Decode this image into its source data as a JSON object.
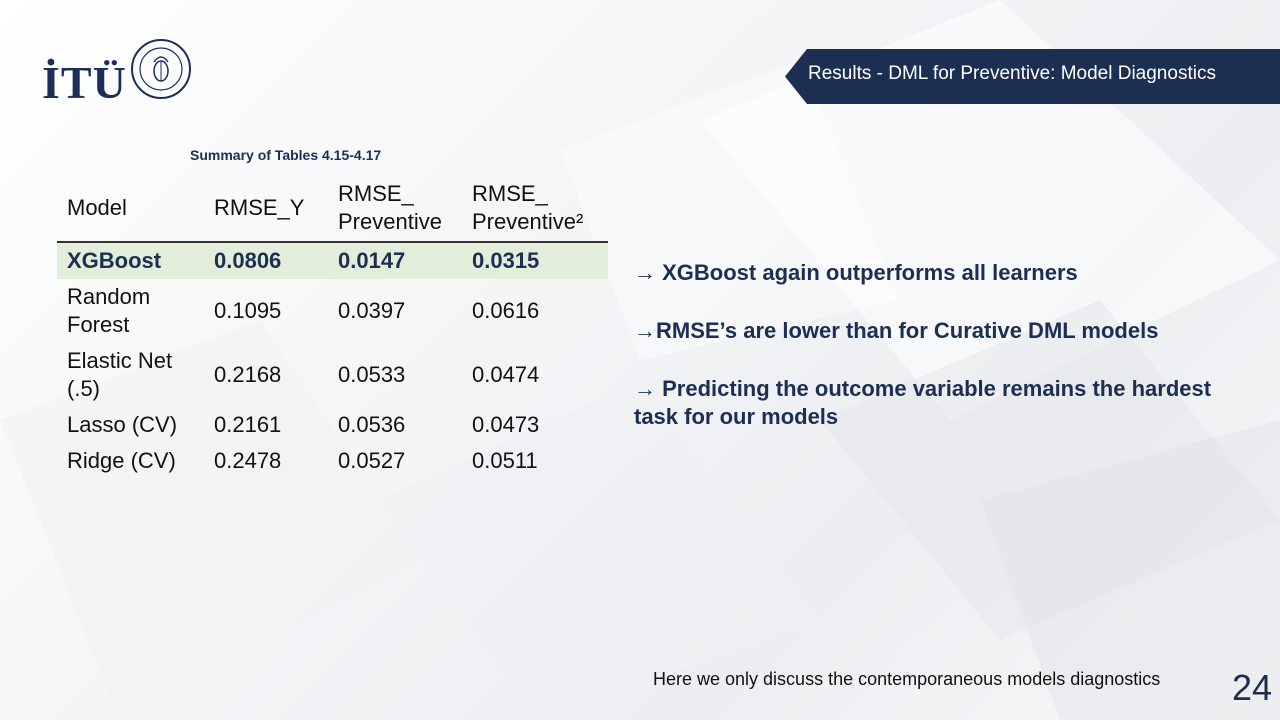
{
  "logo": {
    "text": "İTÜ"
  },
  "slide_title": "Results - DML for Preventive: Model Diagnostics",
  "table": {
    "caption": "Summary of Tables 4.15-4.17",
    "headers": [
      "Model",
      "RMSE_Y",
      "RMSE_ Preventive",
      "RMSE_ Preventive²"
    ],
    "rows": [
      {
        "model": "XGBoost",
        "rmse_y": "0.0806",
        "rmse_p": "0.0147",
        "rmse_p2": "0.0315",
        "highlight": true
      },
      {
        "model": "Random Forest",
        "rmse_y": "0.1095",
        "rmse_p": "0.0397",
        "rmse_p2": "0.0616",
        "highlight": false
      },
      {
        "model": "Elastic Net (.5)",
        "rmse_y": "0.2168",
        "rmse_p": "0.0533",
        "rmse_p2": "0.0474",
        "highlight": false
      },
      {
        "model": "Lasso (CV)",
        "rmse_y": "0.2161",
        "rmse_p": "0.0536",
        "rmse_p2": "0.0473",
        "highlight": false
      },
      {
        "model": "Ridge (CV)",
        "rmse_y": "0.2478",
        "rmse_p": "0.0527",
        "rmse_p2": "0.0511",
        "highlight": false
      }
    ]
  },
  "bullets": [
    "→ XGBoost again outperforms all learners",
    "→RMSE’s are lower than for Curative DML models",
    "→ Predicting the outcome variable remains the hardest task for our models"
  ],
  "footnote": "Here we only discuss the contemporaneous models diagnostics",
  "page_number": "24",
  "colors": {
    "navy": "#1c2f52",
    "highlight_row": "#e2eed9"
  }
}
